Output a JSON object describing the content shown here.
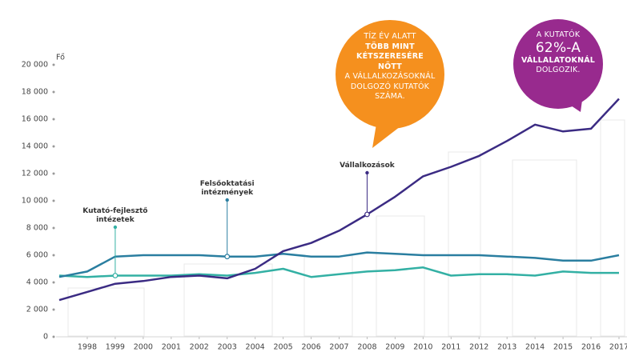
{
  "chart_data": {
    "type": "line",
    "y_unit_label": "Fő",
    "x": [
      1997,
      1998,
      1999,
      2000,
      2001,
      2002,
      2003,
      2004,
      2005,
      2006,
      2007,
      2008,
      2009,
      2010,
      2011,
      2012,
      2013,
      2014,
      2015,
      2016,
      2017
    ],
    "xlim": [
      1997,
      2017
    ],
    "xticks": [
      1998,
      1999,
      2000,
      2001,
      2002,
      2003,
      2004,
      2005,
      2006,
      2007,
      2008,
      2009,
      2010,
      2011,
      2012,
      2013,
      2014,
      2015,
      2016,
      2017
    ],
    "ylim": [
      0,
      20000
    ],
    "yticks": [
      0,
      {
        "value": 2000,
        "label": "2 000"
      },
      {
        "value": 4000,
        "label": "4 000"
      },
      {
        "value": 6000,
        "label": "6 000"
      },
      {
        "value": 8000,
        "label": "8 000"
      },
      {
        "value": 10000,
        "label": "10 000"
      },
      {
        "value": 12000,
        "label": "12 000"
      },
      {
        "value": 14000,
        "label": "14 000"
      },
      {
        "value": 16000,
        "label": "16 000"
      },
      {
        "value": 18000,
        "label": "18 000"
      },
      {
        "value": 20000,
        "label": "20 000"
      }
    ],
    "series": [
      {
        "name": "Kutató-fejlesztő intézetek",
        "color": "#33b0a4",
        "values": [
          4500,
          4400,
          4500,
          4500,
          4500,
          4600,
          4500,
          4700,
          5000,
          4400,
          4600,
          4800,
          4900,
          5100,
          4500,
          4600,
          4600,
          4500,
          4800,
          4700,
          4700
        ]
      },
      {
        "name": "Felsőoktatási intézmények",
        "color": "#2a7ea0",
        "values": [
          4400,
          4800,
          5900,
          6000,
          6000,
          6000,
          5900,
          5900,
          6100,
          5900,
          5900,
          6200,
          6100,
          6000,
          6000,
          6000,
          5900,
          5800,
          5600,
          5600,
          6000
        ]
      },
      {
        "name": "Vállalkozások",
        "color": "#3b2b83",
        "values": [
          2700,
          3300,
          3900,
          4100,
          4400,
          4500,
          4300,
          5000,
          6300,
          6900,
          7800,
          9000,
          10300,
          11800,
          12500,
          13300,
          14400,
          15600,
          15100,
          15300,
          17500
        ]
      }
    ],
    "annotations": [
      {
        "color": "#f5901e",
        "lines": [
          "TÍZ ÉV ALATT",
          "TÖBB MINT",
          "KÉTSZERESÉRE",
          "NŐTT",
          "A VÁLLALKOZÁSOKNÁL",
          "DOLGOZÓ KUTATÓK",
          "SZÁMA."
        ]
      },
      {
        "color": "#982a8e",
        "lines": [
          "A KUTATÓK",
          "62%-A",
          "VÁLLALATOKNÁL",
          "DOLGOZIK."
        ]
      }
    ]
  }
}
